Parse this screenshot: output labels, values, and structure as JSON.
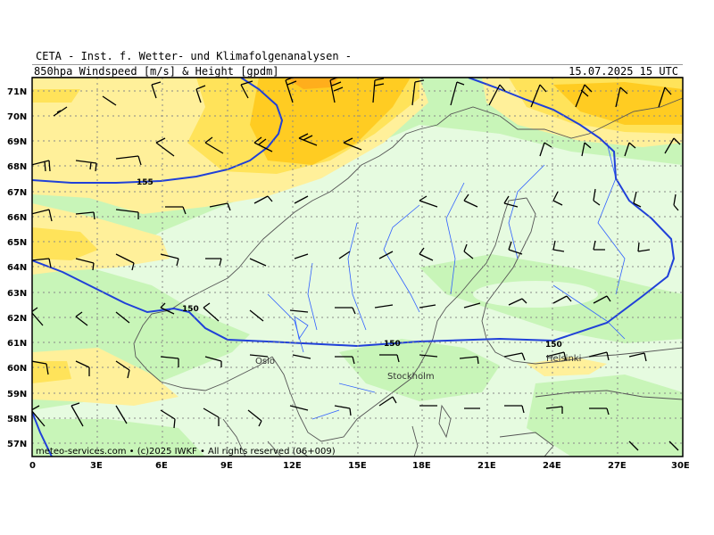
{
  "header": {
    "institute": "CETA - Inst. f. Wetter- und Klimafolgenanalysen -",
    "product": "850hpa_Windspeed_[m/s]_&_Height_[gpdm]",
    "valid_time": "15.07.2025 15 UTC"
  },
  "footer": {
    "credit": "meteo-services.com • (c)2025 IWKF • All rights reserved (06+009)"
  },
  "map": {
    "lon_ticks": [
      "0",
      "3E",
      "6E",
      "9E",
      "12E",
      "15E",
      "18E",
      "21E",
      "24E",
      "27E",
      "30E"
    ],
    "lat_ticks": [
      "57N",
      "58N",
      "59N",
      "60N",
      "61N",
      "62N",
      "63N",
      "64N",
      "65N",
      "66N",
      "67N",
      "68N",
      "69N",
      "70N",
      "71N"
    ],
    "cities": [
      {
        "name": "Oslo",
        "lon": 10.75,
        "lat": 59.9
      },
      {
        "name": "Stockholm",
        "lon": 18.07,
        "lat": 59.33
      },
      {
        "name": "Helsinki",
        "lon": 24.94,
        "lat": 60.17
      }
    ],
    "contour_labels": [
      {
        "text": "155",
        "lon": 5.0,
        "lat": 67.4
      },
      {
        "text": "150",
        "lon": 7.2,
        "lat": 62.0
      },
      {
        "text": "150",
        "lon": 16.5,
        "lat": 61.0
      },
      {
        "text": "150",
        "lon": 24.0,
        "lat": 61.0
      }
    ],
    "colors": {
      "very_light_green": "#e6fbe0",
      "light_green": "#c8f5b8",
      "light_yellow": "#fff09a",
      "yellow": "#ffe35a",
      "orange_yellow": "#ffcc22",
      "orange": "#ffae1c",
      "contour": "#2040d8",
      "rivers": "#3060ff",
      "coast": "#555555"
    }
  }
}
